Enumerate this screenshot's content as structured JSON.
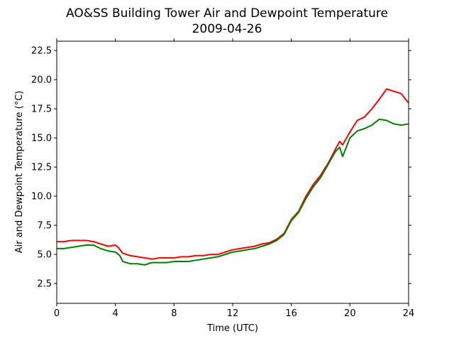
{
  "chart_data": {
    "type": "line",
    "title": "AO&SS Building Tower Air and Dewpoint Temperature",
    "subtitle": "2009-04-26",
    "xlabel": "Time (UTC)",
    "ylabel": "Air and Dewpoint Temperature (°C)",
    "xlim": [
      0,
      24
    ],
    "ylim": [
      0.8,
      23.3
    ],
    "x_ticks": [
      0,
      4,
      8,
      12,
      16,
      20,
      24
    ],
    "y_ticks": [
      2.5,
      5.0,
      7.5,
      10.0,
      12.5,
      15.0,
      17.5,
      20.0,
      22.5
    ],
    "x_tick_labels": [
      "0",
      "4",
      "8",
      "12",
      "16",
      "20",
      "24"
    ],
    "y_tick_labels": [
      "2.5",
      "5.0",
      "7.5",
      "10.0",
      "12.5",
      "15.0",
      "17.5",
      "20.0",
      "22.5"
    ],
    "grid": false,
    "series": [
      {
        "color": "#ff0000",
        "x": [
          0,
          0.5,
          1,
          1.5,
          2,
          2.5,
          3,
          3.5,
          4,
          4.2,
          4.5,
          5,
          5.5,
          6,
          6.5,
          7,
          7.5,
          8,
          8.5,
          9,
          9.5,
          10,
          10.5,
          11,
          11.5,
          12,
          12.5,
          13,
          13.5,
          14,
          14.5,
          15,
          15.5,
          16,
          16.5,
          17,
          17.5,
          18,
          18.5,
          19,
          19.3,
          19.5,
          20,
          20.5,
          21,
          21.5,
          22,
          22.5,
          23,
          23.5,
          23.8,
          24
        ],
        "y": [
          6.1,
          6.1,
          6.2,
          6.2,
          6.2,
          6.1,
          5.9,
          5.7,
          5.8,
          5.6,
          5.1,
          4.9,
          4.8,
          4.7,
          4.6,
          4.7,
          4.7,
          4.7,
          4.8,
          4.8,
          4.9,
          4.9,
          5.0,
          5.0,
          5.2,
          5.4,
          5.5,
          5.6,
          5.7,
          5.9,
          6.0,
          6.3,
          6.8,
          8.0,
          8.7,
          10.0,
          11.0,
          11.8,
          12.8,
          14.0,
          14.7,
          14.4,
          15.5,
          16.5,
          16.8,
          17.5,
          18.3,
          19.2,
          19.0,
          18.8,
          18.3,
          18.0
        ]
      },
      {
        "color": "#008000",
        "x": [
          0,
          0.5,
          1,
          1.5,
          2,
          2.5,
          3,
          3.5,
          4,
          4.3,
          4.5,
          5,
          5.5,
          6,
          6.5,
          7,
          7.5,
          8,
          8.5,
          9,
          9.5,
          10,
          10.5,
          11,
          11.5,
          12,
          12.5,
          13,
          13.5,
          14,
          14.5,
          15,
          15.5,
          16,
          16.5,
          17,
          17.5,
          18,
          18.5,
          19,
          19.3,
          19.5,
          20,
          20.5,
          21,
          21.5,
          22,
          22.5,
          23,
          23.5,
          24
        ],
        "y": [
          5.5,
          5.5,
          5.6,
          5.7,
          5.8,
          5.8,
          5.5,
          5.3,
          5.2,
          4.9,
          4.4,
          4.2,
          4.2,
          4.1,
          4.3,
          4.3,
          4.3,
          4.4,
          4.4,
          4.4,
          4.5,
          4.6,
          4.7,
          4.8,
          5.0,
          5.2,
          5.3,
          5.4,
          5.5,
          5.7,
          5.9,
          6.2,
          6.7,
          7.9,
          8.6,
          9.8,
          10.8,
          11.6,
          12.7,
          13.8,
          14.2,
          13.4,
          15.0,
          15.6,
          15.8,
          16.1,
          16.6,
          16.5,
          16.2,
          16.1,
          16.2
        ]
      }
    ]
  }
}
